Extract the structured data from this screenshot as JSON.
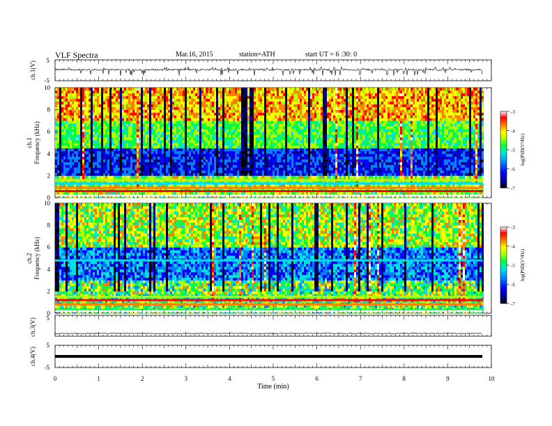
{
  "header": {
    "title": "VLF  Spectra",
    "date": "Mar.16, 2015",
    "station": "station=ATH",
    "start": "start  UT  =   6  :30: 0"
  },
  "chart_data": [
    {
      "type": "line",
      "panel": "ch1-waveform",
      "ylabel": "ch.1(V)",
      "ylim": [
        -5,
        5
      ],
      "yticks": [
        "5",
        "-5"
      ],
      "xlim": [
        0,
        10
      ],
      "data_end_min": 9.8,
      "signal": "noisy trace centered near 0 V with frequent spikes to about -2 V"
    },
    {
      "type": "heatmap",
      "panel": "ch1-spectrogram",
      "ylabel": "ch.1\nFrequency (kHz)",
      "ylim": [
        0,
        10
      ],
      "yticks": [
        "0",
        "2",
        "4",
        "6",
        "8",
        "10"
      ],
      "xlim": [
        0,
        10
      ],
      "data_end_min": 9.8,
      "colorbar": {
        "label": "log(PSD(V²/Hz)",
        "range": [
          -7,
          -3
        ],
        "ticks": [
          "-3",
          "-4",
          "-5",
          "-6",
          "-7"
        ]
      }
    },
    {
      "type": "heatmap",
      "panel": "ch2-spectrogram",
      "ylabel": "ch.2\nFrequency (kHz)",
      "ylim": [
        0,
        10
      ],
      "yticks": [
        "0",
        "2",
        "4",
        "6",
        "8",
        "10"
      ],
      "xlim": [
        0,
        10
      ],
      "data_end_min": 9.8,
      "colorbar": {
        "label": "log(PSD(V²/Hz)",
        "range": [
          -7,
          -3
        ],
        "ticks": [
          "-3",
          "-4",
          "-5",
          "-6",
          "-7"
        ]
      }
    },
    {
      "type": "line",
      "panel": "ch3-waveform",
      "ylabel": "ch.3(V)",
      "ylim": [
        -5,
        5
      ],
      "yticks": [
        "5"
      ],
      "xlim": [
        0,
        10
      ],
      "data_end_min": 9.8,
      "signal": "flat trace near 0 V"
    },
    {
      "type": "line",
      "panel": "ch4-waveform",
      "ylabel": "ch.4(V)",
      "ylim": [
        -5,
        5
      ],
      "yticks": [
        "5",
        "-5"
      ],
      "xlim": [
        0,
        10
      ],
      "data_end_min": 9.8,
      "signal": "thick flat trace near 0 V"
    }
  ],
  "xaxis": {
    "label": "Time  (min)",
    "ticks": [
      "0",
      "1",
      "2",
      "3",
      "4",
      "5",
      "6",
      "7",
      "8",
      "9",
      "10"
    ]
  },
  "colors": {
    "colormap": [
      "#000000",
      "#00008c",
      "#0000ff",
      "#0080ff",
      "#00e0e0",
      "#00ff40",
      "#b0ff00",
      "#ffff00",
      "#ff8000",
      "#ff0000",
      "#ffffff"
    ],
    "trace": "#000000"
  }
}
